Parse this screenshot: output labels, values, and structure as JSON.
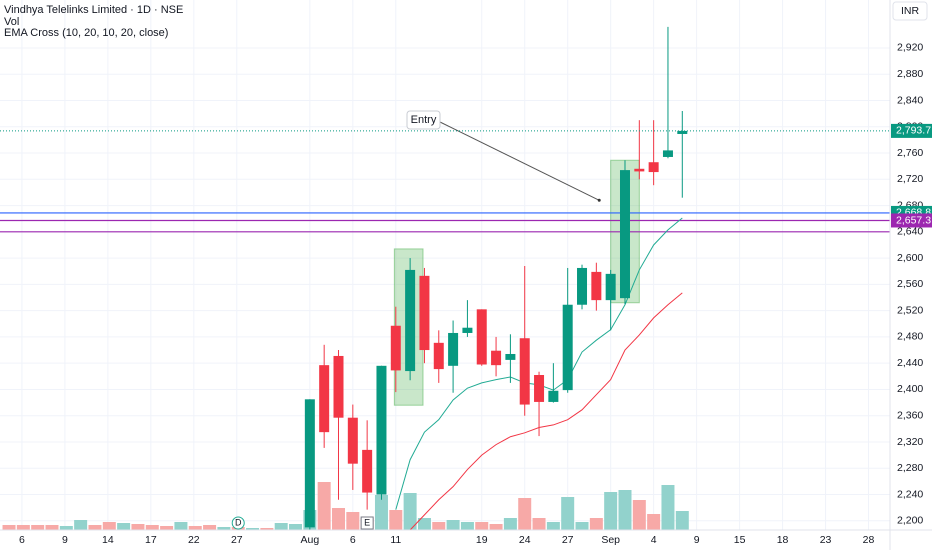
{
  "chart_data": {
    "type": "candlestick",
    "title": "Vindhya Telelinks Limited · 1D · NSE",
    "volume_label": "Vol",
    "indicator_label": "EMA Cross (10, 20, 10, 20, close)",
    "currency": "INR",
    "up_color": "#089981",
    "down_color": "#f23645",
    "xlim": [
      -0.63,
      61.5
    ],
    "ylim": [
      2186,
      2993
    ],
    "yticks": [
      {
        "value": 2200,
        "label": "2,200"
      },
      {
        "value": 2240,
        "label": "2,240"
      },
      {
        "value": 2280,
        "label": "2,280"
      },
      {
        "value": 2320,
        "label": "2,320"
      },
      {
        "value": 2360,
        "label": "2,360"
      },
      {
        "value": 2400,
        "label": "2,400"
      },
      {
        "value": 2440,
        "label": "2,440"
      },
      {
        "value": 2480,
        "label": "2,480"
      },
      {
        "value": 2520,
        "label": "2,520"
      },
      {
        "value": 2560,
        "label": "2,560"
      },
      {
        "value": 2600,
        "label": "2,600"
      },
      {
        "value": 2640,
        "label": "2,640"
      },
      {
        "value": 2680,
        "label": "2,680"
      },
      {
        "value": 2720,
        "label": "2,720"
      },
      {
        "value": 2760,
        "label": "2,760"
      },
      {
        "value": 2800,
        "label": "2,800"
      },
      {
        "value": 2840,
        "label": "2,840"
      },
      {
        "value": 2880,
        "label": "2,880"
      },
      {
        "value": 2920,
        "label": "2,920"
      }
    ],
    "xticks": [
      {
        "value": 0.9,
        "label": "6"
      },
      {
        "value": 3.9,
        "label": "9"
      },
      {
        "value": 6.9,
        "label": "14"
      },
      {
        "value": 9.9,
        "label": "17"
      },
      {
        "value": 12.9,
        "label": "22"
      },
      {
        "value": 15.9,
        "label": "27"
      },
      {
        "value": 21,
        "label": "Aug"
      },
      {
        "value": 24,
        "label": "6"
      },
      {
        "value": 27,
        "label": "11"
      },
      {
        "value": 33,
        "label": "19"
      },
      {
        "value": 36,
        "label": "24"
      },
      {
        "value": 39,
        "label": "27"
      },
      {
        "value": 42,
        "label": "Sep"
      },
      {
        "value": 45,
        "label": "4"
      },
      {
        "value": 48,
        "label": "9"
      },
      {
        "value": 51,
        "label": "15"
      },
      {
        "value": 54,
        "label": "18"
      },
      {
        "value": 57,
        "label": "23"
      },
      {
        "value": 60,
        "label": "28"
      }
    ],
    "candles": {
      "x": [
        21,
        22,
        23,
        24,
        25,
        26,
        27,
        28,
        29,
        30,
        31,
        32,
        33,
        34,
        35,
        36,
        37,
        38,
        39,
        40,
        41,
        42,
        43,
        44,
        45,
        46,
        47
      ],
      "open": [
        2190,
        2437,
        2451,
        2357,
        2308,
        2240,
        2497,
        2428,
        2573,
        2471,
        2436,
        2486,
        2522,
        2459,
        2445,
        2478,
        2422,
        2381,
        2399,
        2529,
        2579,
        2536,
        2539,
        2736,
        2746,
        2754,
        2789
      ],
      "high": [
        2385,
        2468,
        2460,
        2377,
        2353,
        2436,
        2526,
        2600,
        2585,
        2490,
        2505,
        2536,
        2522,
        2480,
        2484,
        2588,
        2427,
        2440,
        2585,
        2590,
        2593,
        2582,
        2749,
        2810,
        2810,
        2952,
        2824
      ],
      "low": [
        2186,
        2311,
        2232,
        2247,
        2217,
        2232,
        2396,
        2414,
        2440,
        2410,
        2395,
        2480,
        2436,
        2420,
        2410,
        2360,
        2329,
        2380,
        2395,
        2522,
        2520,
        2490,
        2530,
        2720,
        2711,
        2752,
        2692
      ],
      "close": [
        2385,
        2335,
        2357,
        2287,
        2243,
        2436,
        2429,
        2582,
        2460,
        2431,
        2486,
        2494,
        2438,
        2437,
        2454,
        2377,
        2381,
        2398,
        2529,
        2585,
        2536,
        2576,
        2734,
        2732,
        2731,
        2764,
        2793.7
      ]
    },
    "volume": {
      "ylim": [
        0,
        160
      ],
      "x": [
        0,
        1,
        2,
        3,
        4,
        5,
        6,
        7,
        8,
        9,
        10,
        11,
        12,
        13,
        14,
        15,
        16,
        17,
        18,
        19,
        20,
        21,
        22,
        23,
        24,
        25,
        26,
        27,
        28,
        29,
        30,
        31,
        32,
        33,
        34,
        35,
        36,
        37,
        38,
        39,
        40,
        41,
        42,
        43,
        44,
        45,
        46,
        47
      ],
      "values": [
        5,
        5,
        5,
        5,
        4,
        10,
        5,
        8,
        7,
        6,
        5,
        4,
        8,
        4,
        5,
        3,
        3,
        2,
        2,
        7,
        6,
        20,
        48,
        22,
        18,
        12,
        35,
        20,
        37,
        12,
        8,
        10,
        8,
        8,
        6,
        12,
        32,
        12,
        8,
        33,
        8,
        12,
        38,
        40,
        30,
        16,
        45,
        19
      ],
      "colors": [
        "#f7a9a7",
        "#f7a9a7",
        "#f7a9a7",
        "#f7a9a7",
        "#92d2cc",
        "#92d2cc",
        "#f7a9a7",
        "#f7a9a7",
        "#92d2cc",
        "#f7a9a7",
        "#f7a9a7",
        "#f7a9a7",
        "#92d2cc",
        "#f7a9a7",
        "#f7a9a7",
        "#92d2cc",
        "#f7a9a7",
        "#92d2cc",
        "#f7a9a7",
        "#92d2cc",
        "#92d2cc",
        "#92d2cc",
        "#f7a9a7",
        "#f7a9a7",
        "#f7a9a7",
        "#f7a9a7",
        "#92d2cc",
        "#f7a9a7",
        "#92d2cc",
        "#92d2cc",
        "#f7a9a7",
        "#92d2cc",
        "#92d2cc",
        "#f7a9a7",
        "#f7a9a7",
        "#92d2cc",
        "#f7a9a7",
        "#f7a9a7",
        "#92d2cc",
        "#92d2cc",
        "#92d2cc",
        "#f7a9a7",
        "#92d2cc",
        "#92d2cc",
        "#f7a9a7",
        "#f7a9a7",
        "#92d2cc",
        "#92d2cc"
      ]
    },
    "series": [
      {
        "name": "EMA 10",
        "color": "#22ab94",
        "x": [
          27,
          28,
          29,
          30,
          31,
          32,
          33,
          34,
          35,
          36,
          37,
          38,
          39,
          40,
          41,
          42,
          43,
          44,
          45,
          46,
          47
        ],
        "values": [
          2217,
          2293,
          2335,
          2354,
          2384,
          2402,
          2410,
          2415,
          2419,
          2410,
          2407,
          2399,
          2415,
          2457,
          2475,
          2491,
          2529,
          2582,
          2620,
          2643,
          2661
        ]
      },
      {
        "name": "EMA 20",
        "color": "#f23645",
        "x": [
          28,
          29,
          30,
          31,
          32,
          33,
          34,
          35,
          36,
          37,
          38,
          39,
          40,
          41,
          42,
          43,
          44,
          45,
          46,
          47
        ],
        "values": [
          2186,
          2209,
          2232,
          2252,
          2278,
          2300,
          2316,
          2328,
          2334,
          2342,
          2346,
          2354,
          2369,
          2392,
          2415,
          2460,
          2483,
          2509,
          2529,
          2547
        ]
      }
    ],
    "horizontal_lines": [
      {
        "value": 2668.8,
        "color": "#2962ff"
      },
      {
        "value": 2657.3,
        "color": "#9c27b0"
      },
      {
        "value": 2640,
        "color": "#9c27b0"
      }
    ],
    "price_labels": [
      {
        "value": 2793.7,
        "label": "2,793.7",
        "color": "#089981"
      },
      {
        "value": 2668.8,
        "label": "2,668.8",
        "color": "#089981"
      },
      {
        "value": 2657.3,
        "label": "2,657.3",
        "color": "#9c27b0"
      }
    ],
    "highlights": [
      {
        "x0": 26.9,
        "x1": 28.9,
        "y0": 2376,
        "y1": 2614
      },
      {
        "x0": 42,
        "x1": 44,
        "y0": 2532,
        "y1": 2749
      }
    ],
    "annotation": {
      "text": "Entry",
      "x": 41.2,
      "y": 2688
    },
    "events": [
      {
        "x": 16,
        "label": "D"
      },
      {
        "x": 25,
        "label": "E"
      }
    ]
  }
}
